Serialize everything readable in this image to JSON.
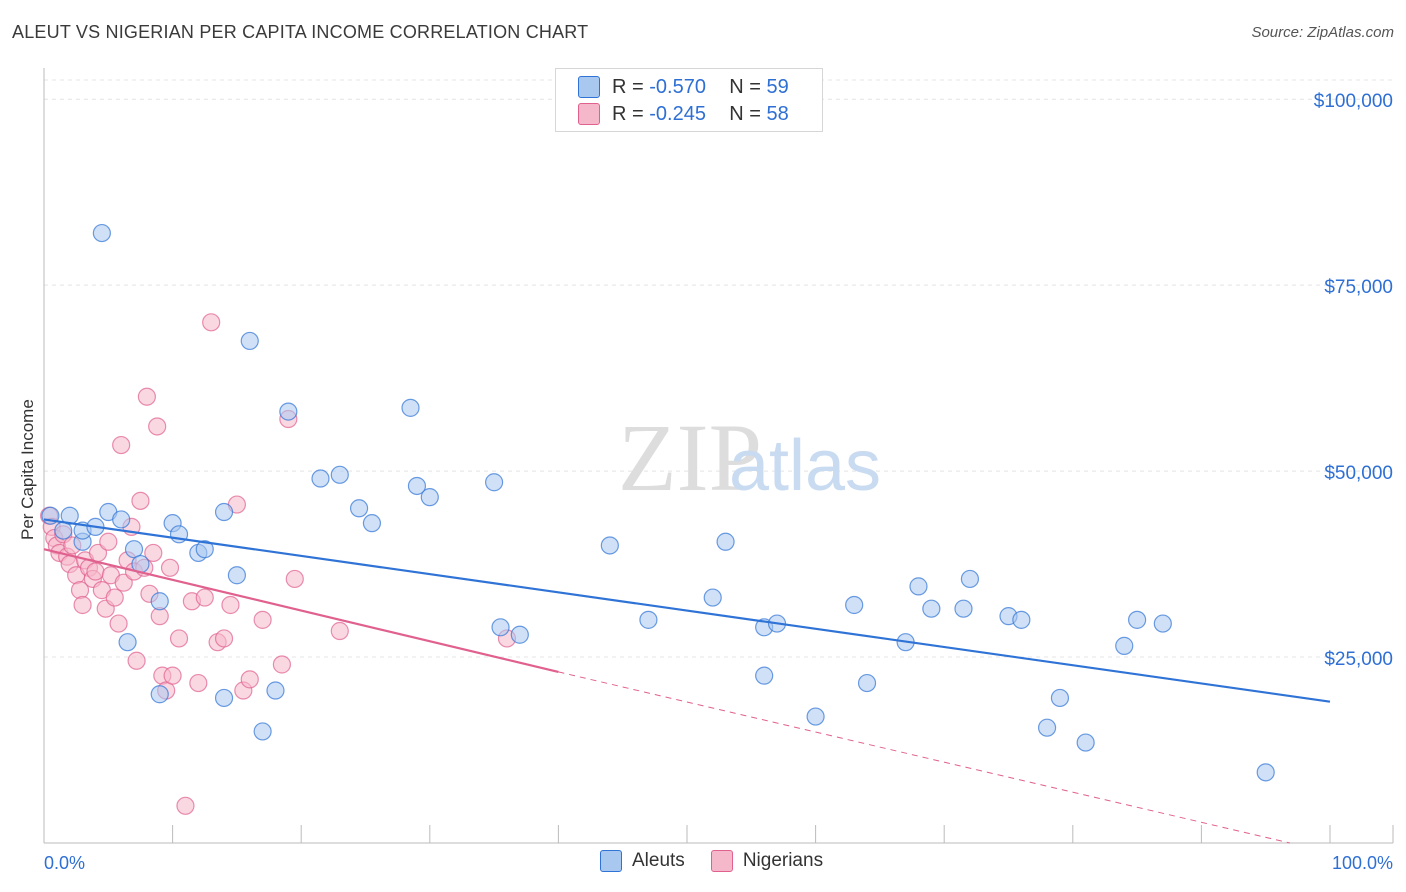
{
  "title": "ALEUT VS NIGERIAN PER CAPITA INCOME CORRELATION CHART",
  "source": "Source: ZipAtlas.com",
  "watermark": {
    "zip": "ZIP",
    "atlas": "atlas"
  },
  "legend": {
    "rows": [
      {
        "r_label": "R =",
        "r_value": "-0.570",
        "n_label": "N =",
        "n_value": "59",
        "color": "#a9c8f0"
      },
      {
        "r_label": "R =",
        "r_value": "-0.245",
        "n_label": "N =",
        "n_value": "58",
        "color": "#f5b8cb"
      }
    ]
  },
  "bottom_legend": [
    "Aleuts",
    "Nigerians"
  ],
  "chart_data": {
    "type": "scatter",
    "title": "ALEUT VS NIGERIAN PER CAPITA INCOME CORRELATION CHART",
    "xlabel": "",
    "ylabel": "Per Capita Income",
    "xlim": [
      0,
      100
    ],
    "ylim": [
      0,
      105000
    ],
    "x_tick_labels": [
      "0.0%",
      "100.0%"
    ],
    "y_ticks": [
      25000,
      50000,
      75000,
      100000
    ],
    "y_tick_labels": [
      "$25,000",
      "$50,000",
      "$75,000",
      "$100,000"
    ],
    "colors": {
      "aleuts": "#2f73d6",
      "aleuts_fill": "#a9c8f0",
      "nigerians": "#e0608e",
      "nigerians_fill": "#f5b8cb",
      "tick_text": "#2e6fd4"
    },
    "series": [
      {
        "name": "Aleuts",
        "points": [
          [
            0.5,
            44000
          ],
          [
            1.5,
            42000
          ],
          [
            2,
            44000
          ],
          [
            3,
            40500
          ],
          [
            3,
            42000
          ],
          [
            4,
            42500
          ],
          [
            5,
            44500
          ],
          [
            6,
            43500
          ],
          [
            6.5,
            27000
          ],
          [
            7,
            39500
          ],
          [
            7.5,
            37500
          ],
          [
            9,
            32500
          ],
          [
            9,
            20000
          ],
          [
            10,
            43000
          ],
          [
            4.5,
            82000
          ],
          [
            10.5,
            41500
          ],
          [
            12,
            39000
          ],
          [
            12.5,
            39500
          ],
          [
            14,
            44500
          ],
          [
            14,
            19500
          ],
          [
            15,
            36000
          ],
          [
            16,
            67500
          ],
          [
            17,
            15000
          ],
          [
            18,
            20500
          ],
          [
            19,
            58000
          ],
          [
            21.5,
            49000
          ],
          [
            23,
            49500
          ],
          [
            24.5,
            45000
          ],
          [
            25.5,
            43000
          ],
          [
            28.5,
            58500
          ],
          [
            29,
            48000
          ],
          [
            30,
            46500
          ],
          [
            35,
            48500
          ],
          [
            35.5,
            29000
          ],
          [
            37,
            28000
          ],
          [
            44,
            40000
          ],
          [
            47,
            30000
          ],
          [
            52,
            33000
          ],
          [
            53,
            40500
          ],
          [
            56,
            29000
          ],
          [
            56,
            22500
          ],
          [
            57,
            29500
          ],
          [
            60,
            17000
          ],
          [
            63,
            32000
          ],
          [
            64,
            21500
          ],
          [
            67,
            27000
          ],
          [
            68,
            34500
          ],
          [
            69,
            31500
          ],
          [
            71.5,
            31500
          ],
          [
            72,
            35500
          ],
          [
            75,
            30500
          ],
          [
            76,
            30000
          ],
          [
            78,
            15500
          ],
          [
            79,
            19500
          ],
          [
            81,
            13500
          ],
          [
            84,
            26500
          ],
          [
            85,
            30000
          ],
          [
            87,
            29500
          ],
          [
            95,
            9500
          ]
        ],
        "trend": {
          "x": [
            0,
            100
          ],
          "y": [
            43500,
            19000
          ]
        }
      },
      {
        "name": "Nigerians",
        "points": [
          [
            0.4,
            44000
          ],
          [
            0.6,
            42500
          ],
          [
            0.8,
            41000
          ],
          [
            1.0,
            40000
          ],
          [
            1.2,
            39000
          ],
          [
            1.5,
            41500
          ],
          [
            1.8,
            38500
          ],
          [
            2.0,
            37500
          ],
          [
            2.2,
            40000
          ],
          [
            2.5,
            36000
          ],
          [
            2.8,
            34000
          ],
          [
            3.0,
            32000
          ],
          [
            3.2,
            38000
          ],
          [
            3.5,
            37000
          ],
          [
            3.8,
            35500
          ],
          [
            4.0,
            36500
          ],
          [
            4.2,
            39000
          ],
          [
            4.5,
            34000
          ],
          [
            4.8,
            31500
          ],
          [
            5.0,
            40500
          ],
          [
            5.2,
            36000
          ],
          [
            5.5,
            33000
          ],
          [
            5.8,
            29500
          ],
          [
            6.0,
            53500
          ],
          [
            6.2,
            35000
          ],
          [
            6.5,
            38000
          ],
          [
            6.8,
            42500
          ],
          [
            7.0,
            36500
          ],
          [
            7.2,
            24500
          ],
          [
            7.5,
            46000
          ],
          [
            7.8,
            37000
          ],
          [
            8.0,
            60000
          ],
          [
            8.2,
            33500
          ],
          [
            8.5,
            39000
          ],
          [
            8.8,
            56000
          ],
          [
            9.0,
            30500
          ],
          [
            9.2,
            22500
          ],
          [
            9.5,
            20500
          ],
          [
            9.8,
            37000
          ],
          [
            10.0,
            22500
          ],
          [
            10.5,
            27500
          ],
          [
            11.0,
            5000
          ],
          [
            11.5,
            32500
          ],
          [
            12.0,
            21500
          ],
          [
            12.5,
            33000
          ],
          [
            13.0,
            70000
          ],
          [
            13.5,
            27000
          ],
          [
            14.0,
            27500
          ],
          [
            14.5,
            32000
          ],
          [
            15.0,
            45500
          ],
          [
            15.5,
            20500
          ],
          [
            16.0,
            22000
          ],
          [
            17.0,
            30000
          ],
          [
            18.5,
            24000
          ],
          [
            19.0,
            57000
          ],
          [
            19.5,
            35500
          ],
          [
            23.0,
            28500
          ],
          [
            36.0,
            27500
          ]
        ],
        "trend": {
          "x": [
            0,
            40
          ],
          "y": [
            39500,
            23000
          ]
        },
        "trend_extension": {
          "x": [
            40,
            100
          ],
          "y": [
            23000,
            0
          ]
        }
      }
    ]
  }
}
